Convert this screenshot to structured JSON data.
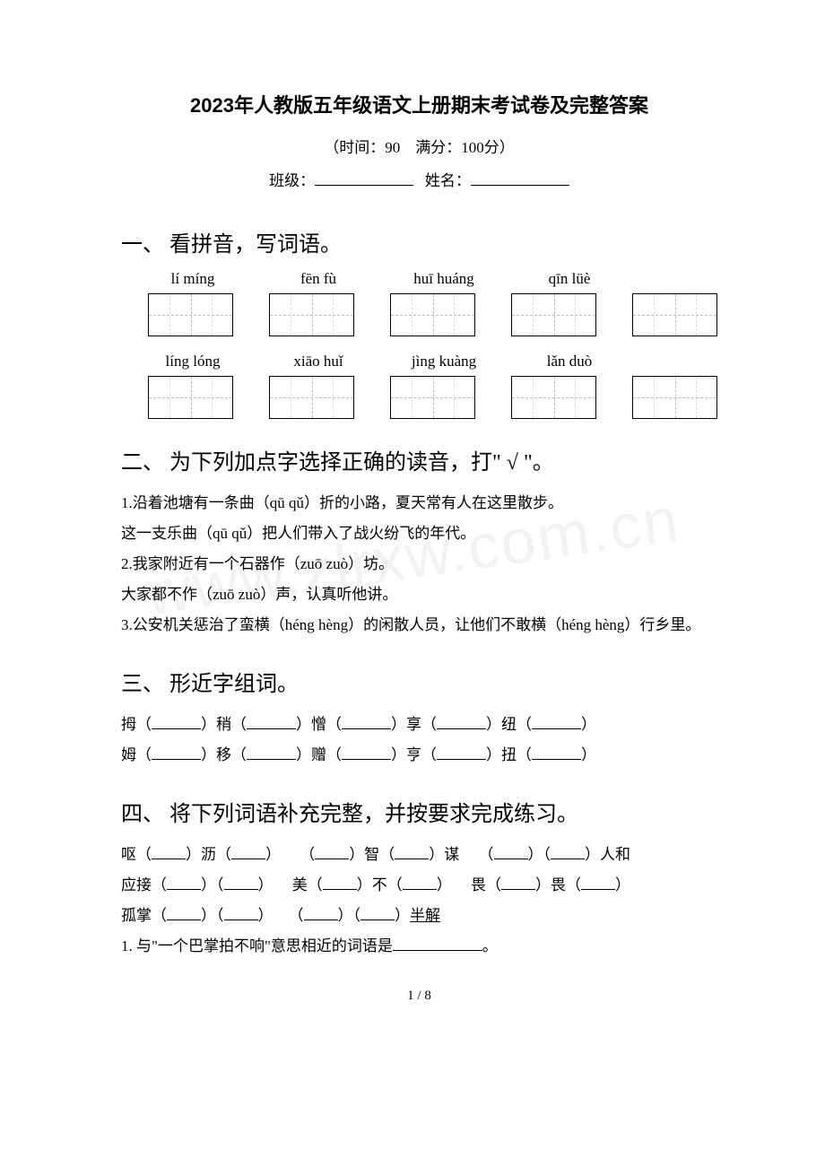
{
  "title": "2023年人教版五年级语文上册期末考试卷及完整答案",
  "subtitle": "（时间：90　满分：100分）",
  "fill_labels": {
    "class": "班级：",
    "name": "姓名："
  },
  "sections": {
    "s1": {
      "head": "一、 看拼音，写词语。",
      "row1": [
        "lí míng",
        "fēn fù",
        "huī huáng",
        "qīn lüè"
      ],
      "row2": [
        "líng lóng",
        "xiāo huǐ",
        "jìng kuàng",
        "lǎn duò"
      ]
    },
    "s2": {
      "head": "二、 为下列加点字选择正确的读音，打\" √ \"。",
      "lines": [
        "1.沿着池塘有一条曲（qū  qǔ）折的小路，夏天常有人在这里散步。",
        "这一支乐曲（qū  qǔ）把人们带入了战火纷飞的年代。",
        "2.我家附近有一个石器作（zuō  zuò）坊。",
        "大家都不作（zuō  zuò）声，认真听他讲。",
        "3.公安机关惩治了蛮横（héng  hèng）的闲散人员，让他们不敢横（héng  hèng）行乡里。"
      ]
    },
    "s3": {
      "head": "三、 形近字组词。",
      "pairs": [
        [
          "拇（",
          "）稍（",
          "）憎（",
          "）享（",
          "）纽（",
          "）"
        ],
        [
          "姆（",
          "）移（",
          "）赠（",
          "）亨（",
          "）扭（",
          "）"
        ]
      ]
    },
    "s4": {
      "head": "四、 将下列词语补充完整，并按要求完成练习。",
      "row1": [
        "呕（",
        "）沥（",
        "）",
        "（",
        "）智（",
        "）谋",
        "（",
        "）（",
        "）人和"
      ],
      "row2": [
        "应接（",
        "）（",
        "）",
        "美（",
        "）不（",
        "）",
        "畏（",
        "）畏（",
        "）"
      ],
      "row3_prefix": "孤掌（",
      "row3_mid1": "）（",
      "row3_mid2": "）　　（",
      "row3_mid3": "）（",
      "row3_suffix": "）",
      "row3_u": "半解",
      "q1": "1. 与\"一个巴掌拍不响\"意思相近的词语是",
      "q1_suffix": "。"
    }
  },
  "watermark": "www.zlrxw.com.cn",
  "page_num": "1 / 8",
  "colors": {
    "text": "#000000",
    "bg": "#ffffff",
    "dash": "#bbbbbb"
  }
}
